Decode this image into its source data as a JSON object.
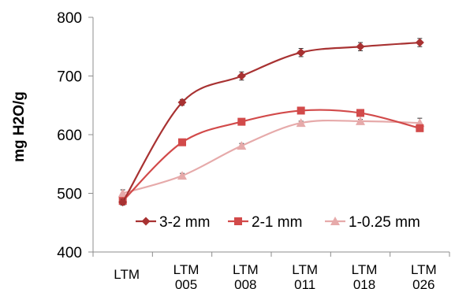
{
  "chart_data": {
    "type": "line",
    "title": "",
    "xlabel": "",
    "ylabel": "mg H2O/g",
    "ylim": [
      400,
      800
    ],
    "yticks": [
      400,
      500,
      600,
      700,
      800
    ],
    "grid": false,
    "legend_position": "inside-bottom-right",
    "categories": [
      [
        "LTM"
      ],
      [
        "LTM",
        "005"
      ],
      [
        "LTM",
        "008"
      ],
      [
        "LTM",
        "011"
      ],
      [
        "LTM",
        "018"
      ],
      [
        "LTM",
        "026"
      ]
    ],
    "series": [
      {
        "name": "3-2 mm",
        "marker": "diamond",
        "color": "#a83232",
        "values": [
          485,
          655,
          700,
          740,
          750,
          757
        ],
        "error": [
          5,
          5,
          7,
          7,
          7,
          7
        ]
      },
      {
        "name": "2-1 mm",
        "marker": "square",
        "color": "#d24a4a",
        "values": [
          487,
          587,
          622,
          641,
          637,
          611
        ],
        "error": [
          5,
          4,
          4,
          3,
          3,
          4
        ]
      },
      {
        "name": "1-0.25 mm",
        "marker": "triangle",
        "color": "#e6aaaa",
        "values": [
          500,
          530,
          581,
          620,
          623,
          620
        ],
        "error": [
          6,
          4,
          4,
          3,
          3,
          8
        ]
      }
    ]
  }
}
